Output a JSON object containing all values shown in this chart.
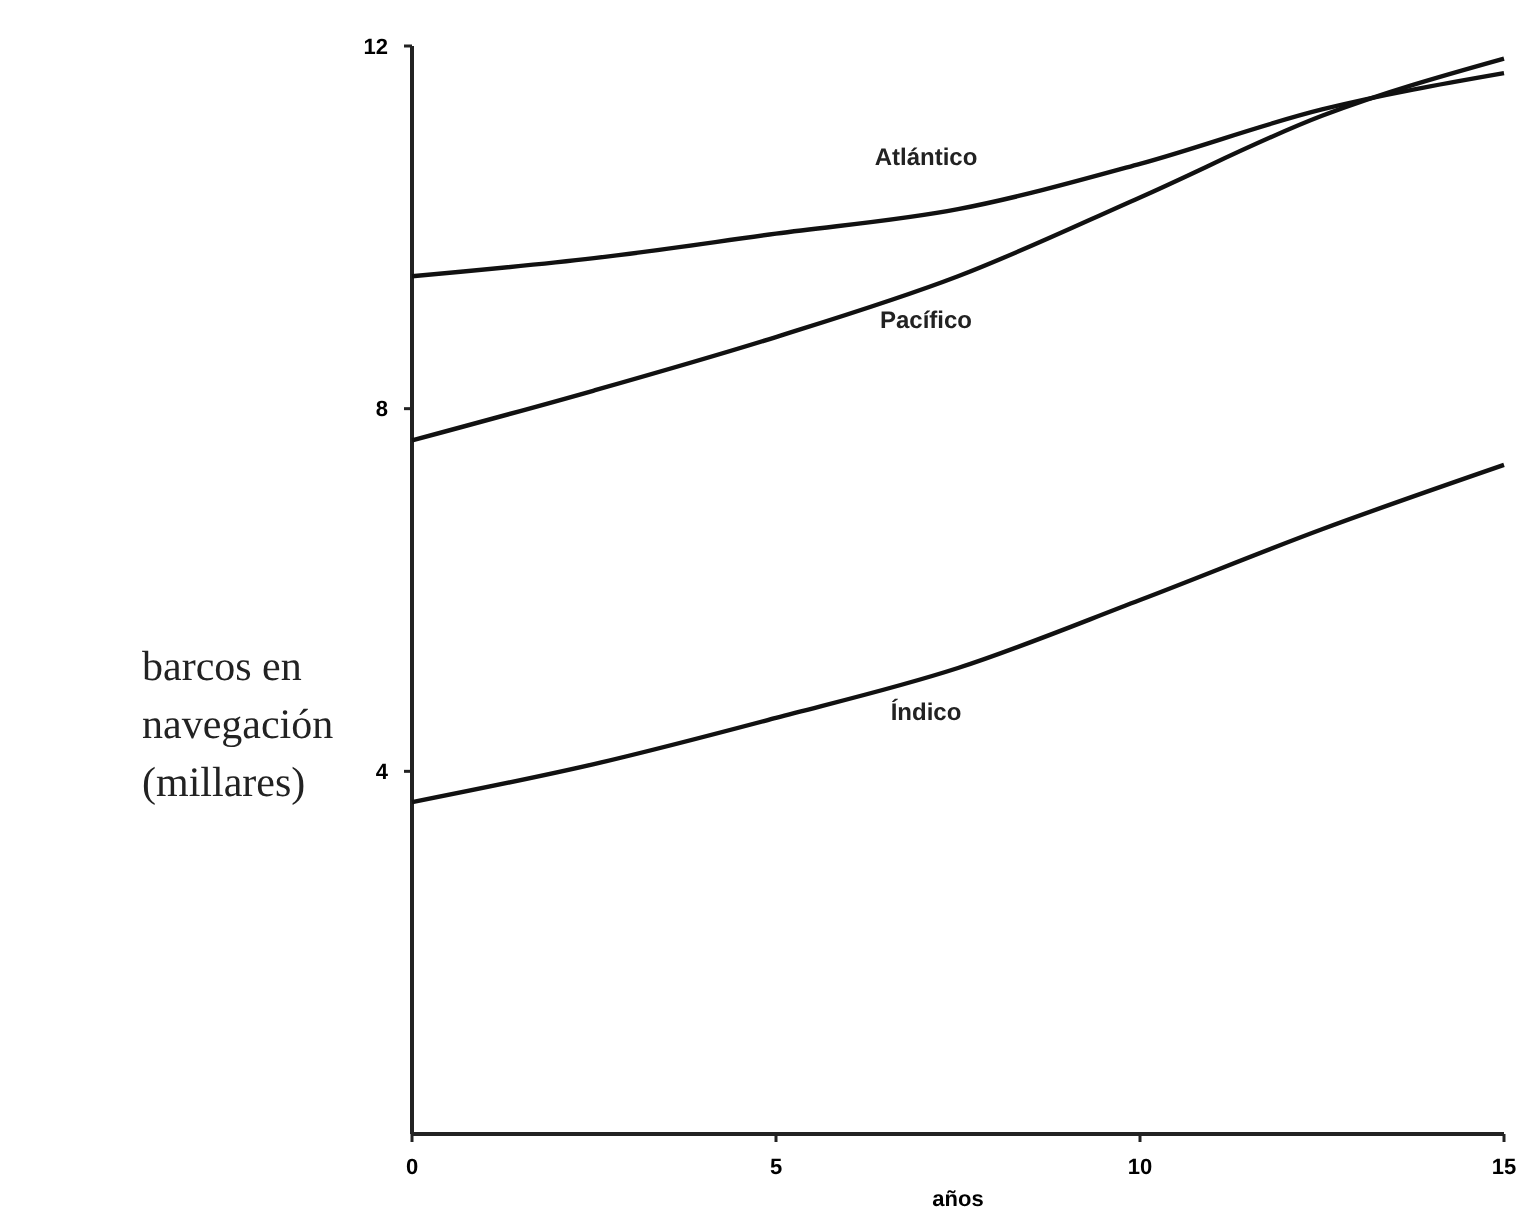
{
  "chart_data": {
    "type": "line",
    "xlabel": "años",
    "ylabel": "barcos en\nnavegación\n(millares)",
    "x": [
      0,
      2.5,
      5,
      7.5,
      10,
      12.5,
      15
    ],
    "series": [
      {
        "name": "Atlántico",
        "color": "#111111",
        "values": [
          9.46,
          9.66,
          9.93,
          10.2,
          10.7,
          11.3,
          11.7
        ]
      },
      {
        "name": "Pacífico",
        "color": "#111111",
        "values": [
          7.65,
          8.2,
          8.79,
          9.46,
          10.33,
          11.23,
          11.86
        ]
      },
      {
        "name": "Índico",
        "color": "#111111",
        "values": [
          3.66,
          4.08,
          4.59,
          5.14,
          5.89,
          6.67,
          7.38
        ]
      }
    ],
    "xlim": [
      0,
      15
    ],
    "xticks": [
      0,
      5,
      10,
      15
    ],
    "ylim": [
      0,
      12
    ],
    "yticks": [
      4,
      8,
      12
    ],
    "grid": false,
    "marker": "none",
    "line_style": "solid"
  }
}
